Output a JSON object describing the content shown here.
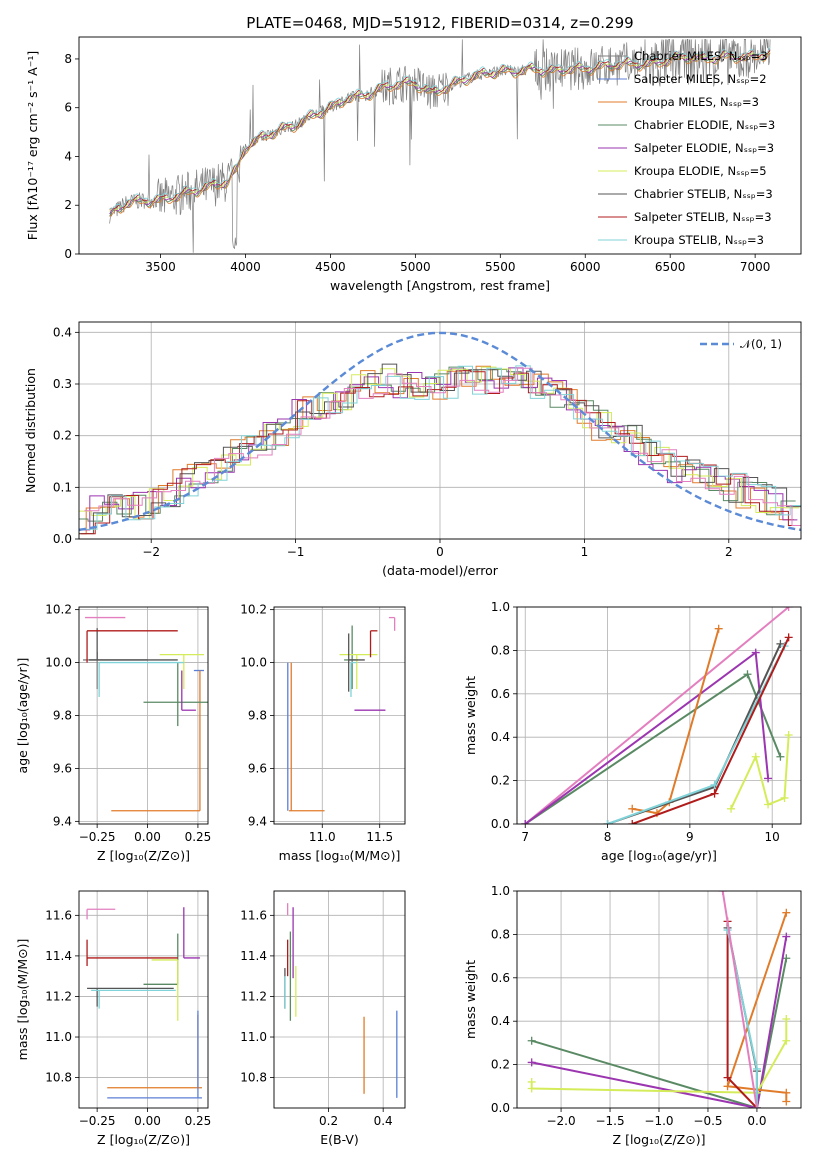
{
  "figure": {
    "title": "PLATE=0468, MJD=51912, FIBERID=0314, z=0.299"
  },
  "chart_data": [
    {
      "id": "spectrum",
      "type": "line",
      "xlabel": "wavelength [Angstrom, rest frame]",
      "ylabel": "Flux [fλ10⁻¹⁷ erg cm⁻² s⁻¹ A⁻¹]",
      "xlim": [
        3020,
        7270
      ],
      "ylim": [
        0,
        8.9
      ],
      "xticks": [
        3500,
        4000,
        4500,
        5000,
        5500,
        6000,
        6500,
        7000
      ],
      "yticks": [
        0,
        2,
        4,
        6,
        8
      ],
      "grid": false,
      "legend_position": "top-right",
      "legend": [
        "Chabrier MILES, N_SSP=3",
        "Salpeter MILES, N_SSP=2",
        "Kroupa MILES, N_SSP=3",
        "Chabrier ELODIE, N_SSP=3",
        "Salpeter ELODIE, N_SSP=3",
        "Kroupa ELODIE, N_SSP=5",
        "Chabrier STELIB, N_SSP=3",
        "Salpeter STELIB, N_SSP=3",
        "Kroupa STELIB, N_SSP=3"
      ],
      "continuum": {
        "x": [
          3200,
          3300,
          3400,
          3500,
          3600,
          3700,
          3800,
          3900,
          3950,
          4000,
          4100,
          4200,
          4300,
          4400,
          4500,
          4600,
          4700,
          4800,
          4900,
          5000,
          5100,
          5200,
          5300,
          5400,
          5500,
          5600,
          5700,
          5800,
          5900,
          6000,
          6100,
          6200,
          6300,
          6400,
          6500,
          6600,
          6700,
          6800,
          6900,
          7000,
          7100
        ],
        "y": [
          1.6,
          2.1,
          2.2,
          2.2,
          2.4,
          2.6,
          2.8,
          3.0,
          3.5,
          4.4,
          4.8,
          5.1,
          5.3,
          5.7,
          6.0,
          6.4,
          6.5,
          6.8,
          7.0,
          7.0,
          6.6,
          6.9,
          7.2,
          7.4,
          7.5,
          7.5,
          7.6,
          7.5,
          7.6,
          7.6,
          7.7,
          7.8,
          7.8,
          7.8,
          8.0,
          8.1,
          8.0,
          8.1,
          8.1,
          8.1,
          8.3
        ]
      }
    },
    {
      "id": "residuals",
      "type": "step",
      "xlabel": "(data-model)/error",
      "ylabel": "Normed distribution",
      "xlim": [
        -2.5,
        2.5
      ],
      "ylim": [
        0,
        0.42
      ],
      "xticks": [
        -2,
        -1,
        0,
        1,
        2
      ],
      "yticks": [
        0.0,
        0.1,
        0.2,
        0.3,
        0.4
      ],
      "grid": true,
      "legend_position": "top-right",
      "reference_curve": {
        "label": "𝒩(0, 1)",
        "style": "dashed",
        "mean": 0,
        "sigma": 1
      },
      "bins": [
        -2.5,
        -2.4,
        -2.3,
        -2.2,
        -2.1,
        -2.0,
        -1.9,
        -1.8,
        -1.7,
        -1.6,
        -1.5,
        -1.4,
        -1.3,
        -1.2,
        -1.1,
        -1.0,
        -0.9,
        -0.8,
        -0.7,
        -0.6,
        -0.5,
        -0.4,
        -0.3,
        -0.2,
        -0.1,
        0.0,
        0.1,
        0.2,
        0.3,
        0.4,
        0.5,
        0.6,
        0.7,
        0.8,
        0.9,
        1.0,
        1.1,
        1.2,
        1.3,
        1.4,
        1.5,
        1.6,
        1.7,
        1.8,
        1.9,
        2.0,
        2.1,
        2.2,
        2.3,
        2.4,
        2.5
      ],
      "envelope": [
        0.035,
        0.06,
        0.07,
        0.065,
        0.065,
        0.07,
        0.08,
        0.11,
        0.12,
        0.13,
        0.15,
        0.17,
        0.18,
        0.2,
        0.21,
        0.24,
        0.26,
        0.27,
        0.28,
        0.3,
        0.3,
        0.31,
        0.3,
        0.3,
        0.31,
        0.3,
        0.31,
        0.3,
        0.31,
        0.32,
        0.31,
        0.3,
        0.29,
        0.28,
        0.26,
        0.24,
        0.22,
        0.2,
        0.19,
        0.17,
        0.15,
        0.13,
        0.13,
        0.12,
        0.11,
        0.1,
        0.09,
        0.08,
        0.07,
        0.05
      ]
    },
    {
      "id": "age_vs_Z",
      "type": "errorbar",
      "xlabel": "Z [log₁₀(Z/Z⊙)]",
      "ylabel": "age  [log₁₀(age/yr)]",
      "xlim": [
        -0.34,
        0.3
      ],
      "ylim": [
        9.39,
        10.21
      ],
      "xticks": [
        -0.25,
        0.0,
        0.25
      ],
      "yticks": [
        9.4,
        9.6,
        9.8,
        10.0,
        10.2
      ],
      "grid": true,
      "points": [
        {
          "x": -0.25,
          "y": 10.01,
          "xerr": [
            0.07,
            0.25
          ],
          "yerr": [
            0.11,
            0.03
          ],
          "model": "Chabrier MILES"
        },
        {
          "x": 0.25,
          "y": 9.97,
          "xerr": [
            0.02,
            0.03
          ],
          "yerr": [
            0.0,
            0.0
          ],
          "model": "Salpeter MILES"
        },
        {
          "x": 0.26,
          "y": 9.44,
          "xerr": [
            0.44,
            0.0
          ],
          "yerr": [
            0.0,
            0.53
          ],
          "model": "Kroupa MILES"
        },
        {
          "x": 0.15,
          "y": 9.85,
          "xerr": [
            0.17,
            0.15
          ],
          "yerr": [
            0.09,
            0.15
          ],
          "model": "Chabrier ELODIE"
        },
        {
          "x": 0.17,
          "y": 9.82,
          "xerr": [
            0.0,
            0.07
          ],
          "yerr": [
            0.0,
            0.15
          ],
          "model": "Salpeter ELODIE"
        },
        {
          "x": 0.18,
          "y": 10.03,
          "xerr": [
            0.12,
            0.1
          ],
          "yerr": [
            0.13,
            0.0
          ],
          "model": "Kroupa ELODIE"
        },
        {
          "x": -0.25,
          "y": 10.01,
          "xerr": [
            0.04,
            0.4
          ],
          "yerr": [
            0.0,
            0.12
          ],
          "model": "Chabrier STELIB"
        },
        {
          "x": -0.3,
          "y": 10.12,
          "xerr": [
            0.0,
            0.45
          ],
          "yerr": [
            0.12,
            0.0
          ],
          "model": "Salpeter STELIB"
        },
        {
          "x": -0.24,
          "y": 10.0,
          "xerr": [
            0.0,
            0.42
          ],
          "yerr": [
            0.13,
            0.0
          ],
          "model": "Kroupa STELIB"
        },
        {
          "x": -0.25,
          "y": 10.17,
          "xerr": [
            0.06,
            0.14
          ],
          "yerr": [
            0.0,
            0.0
          ],
          "model": "pink"
        }
      ]
    },
    {
      "id": "age_vs_mass",
      "type": "errorbar",
      "xlabel": "mass [log₁₀(M/M⊙)]",
      "ylabel": "",
      "xlim": [
        10.58,
        11.72
      ],
      "ylim": [
        9.39,
        10.21
      ],
      "xticks": [
        11.0,
        11.5
      ],
      "yticks": [
        9.4,
        9.6,
        9.8,
        10.0,
        10.2
      ],
      "grid": true,
      "points": [
        {
          "x": 10.73,
          "y": 9.44,
          "xerr": [
            0.02,
            0.29
          ],
          "yerr": [
            0.0,
            0.56
          ],
          "model": "Kroupa MILES"
        },
        {
          "x": 10.7,
          "y": 9.97,
          "xerr": [
            0.0,
            0.0
          ],
          "yerr": [
            0.53,
            0.03
          ],
          "model": "Salpeter MILES"
        },
        {
          "x": 11.26,
          "y": 10.01,
          "xerr": [
            0.07,
            0.05
          ],
          "yerr": [
            0.11,
            0.13
          ],
          "model": "Chabrier ELODIE"
        },
        {
          "x": 11.4,
          "y": 9.82,
          "xerr": [
            0.12,
            0.15
          ],
          "yerr": [
            0.0,
            0.0
          ],
          "model": "Salpeter ELODIE"
        },
        {
          "x": 11.3,
          "y": 10.03,
          "xerr": [
            0.15,
            0.18
          ],
          "yerr": [
            0.13,
            0.0
          ],
          "model": "Kroupa ELODIE"
        },
        {
          "x": 11.23,
          "y": 10.01,
          "xerr": [
            0.0,
            0.14
          ],
          "yerr": [
            0.12,
            0.1
          ],
          "model": "Chabrier STELIB"
        },
        {
          "x": 11.42,
          "y": 10.12,
          "xerr": [
            0.0,
            0.06
          ],
          "yerr": [
            0.1,
            0.0
          ],
          "model": "Salpeter STELIB"
        },
        {
          "x": 11.25,
          "y": 10.0,
          "xerr": [
            0.0,
            0.05
          ],
          "yerr": [
            0.13,
            0.0
          ],
          "model": "Kroupa STELIB"
        },
        {
          "x": 11.63,
          "y": 10.17,
          "xerr": [
            0.05,
            0.0
          ],
          "yerr": [
            0.05,
            0.0
          ],
          "model": "pink"
        }
      ]
    },
    {
      "id": "mass_weight_vs_age",
      "type": "line",
      "xlabel": "age  [log₁₀(age/yr)]",
      "ylabel": "mass weight",
      "xlim": [
        6.9,
        10.35
      ],
      "ylim": [
        0,
        1.0
      ],
      "xticks": [
        7,
        8,
        9,
        10
      ],
      "yticks": [
        0.0,
        0.2,
        0.4,
        0.6,
        0.8,
        1.0
      ],
      "grid": true,
      "series": [
        {
          "model": "pink",
          "x": [
            7.0,
            10.2
          ],
          "y": [
            0.0,
            1.0
          ]
        },
        {
          "model": "Chabrier ELODIE",
          "x": [
            7.0,
            9.7,
            10.1
          ],
          "y": [
            0.0,
            0.69,
            0.31
          ]
        },
        {
          "model": "Salpeter ELODIE",
          "x": [
            7.0,
            9.8,
            9.95
          ],
          "y": [
            0.0,
            0.79,
            0.21
          ]
        },
        {
          "model": "Kroupa MILES",
          "x": [
            8.3,
            8.6,
            8.75,
            9.35
          ],
          "y": [
            0.07,
            0.05,
            0.1,
            0.9
          ]
        },
        {
          "model": "Chabrier STELIB",
          "x": [
            8.0,
            9.3,
            10.1
          ],
          "y": [
            0.0,
            0.17,
            0.83
          ]
        },
        {
          "model": "Kroupa STELIB",
          "x": [
            8.0,
            9.3,
            10.15
          ],
          "y": [
            0.0,
            0.18,
            0.82
          ]
        },
        {
          "model": "Salpeter STELIB",
          "x": [
            8.3,
            9.3,
            10.2
          ],
          "y": [
            0.0,
            0.14,
            0.86
          ]
        },
        {
          "model": "Kroupa ELODIE",
          "x": [
            9.5,
            9.8,
            9.95,
            10.15,
            10.2
          ],
          "y": [
            0.07,
            0.31,
            0.09,
            0.12,
            0.41
          ]
        }
      ]
    },
    {
      "id": "mass_vs_Z",
      "type": "errorbar",
      "xlabel": "Z [log₁₀(Z/Z⊙)]",
      "ylabel": "mass [log₁₀(M/M⊙)]",
      "xlim": [
        -0.34,
        0.3
      ],
      "ylim": [
        10.65,
        11.72
      ],
      "xticks": [
        -0.25,
        0.0,
        0.25
      ],
      "yticks": [
        10.8,
        11.0,
        11.2,
        11.4,
        11.6
      ],
      "grid": true,
      "points": [
        {
          "x": 0.25,
          "y": 10.75,
          "xerr": [
            0.45,
            0.02
          ],
          "yerr": [
            0.0,
            0.36
          ],
          "model": "Kroupa MILES"
        },
        {
          "x": 0.25,
          "y": 10.7,
          "xerr": [
            0.45,
            0.02
          ],
          "yerr": [
            0.0,
            0.43
          ],
          "model": "Salpeter MILES"
        },
        {
          "x": 0.15,
          "y": 11.26,
          "xerr": [
            0.17,
            0.0
          ],
          "yerr": [
            0.0,
            0.25
          ],
          "model": "Chabrier ELODIE"
        },
        {
          "x": 0.18,
          "y": 11.39,
          "xerr": [
            0.0,
            0.08
          ],
          "yerr": [
            0.0,
            0.25
          ],
          "model": "Salpeter ELODIE"
        },
        {
          "x": 0.15,
          "y": 11.38,
          "xerr": [
            0.13,
            0.0
          ],
          "yerr": [
            0.3,
            0.0
          ],
          "model": "Kroupa ELODIE"
        },
        {
          "x": -0.25,
          "y": 11.24,
          "xerr": [
            0.05,
            0.38
          ],
          "yerr": [
            0.09,
            0.0
          ],
          "model": "Chabrier STELIB"
        },
        {
          "x": -0.3,
          "y": 11.39,
          "xerr": [
            0.0,
            0.45
          ],
          "yerr": [
            0.04,
            0.09
          ],
          "model": "Salpeter STELIB"
        },
        {
          "x": -0.24,
          "y": 11.23,
          "xerr": [
            0.04,
            0.38
          ],
          "yerr": [
            0.09,
            0.0
          ],
          "model": "Kroupa STELIB"
        },
        {
          "x": -0.3,
          "y": 11.63,
          "xerr": [
            0.0,
            0.14
          ],
          "yerr": [
            0.05,
            0.0
          ],
          "model": "pink"
        }
      ]
    },
    {
      "id": "mass_vs_ebv",
      "type": "errorbar",
      "xlabel": "E(B-V)",
      "ylabel": "",
      "xlim": [
        0.0,
        0.48
      ],
      "ylim": [
        10.65,
        11.72
      ],
      "xticks": [
        0.2,
        0.4
      ],
      "yticks": [
        10.8,
        11.0,
        11.2,
        11.4,
        11.6
      ],
      "grid": true,
      "points": [
        {
          "x": 0.33,
          "y": 10.9,
          "xerr": [
            0.0,
            0.0
          ],
          "yerr": [
            0.18,
            0.2
          ],
          "model": "Kroupa MILES"
        },
        {
          "x": 0.45,
          "y": 10.9,
          "xerr": [
            0.0,
            0.0
          ],
          "yerr": [
            0.2,
            0.23
          ],
          "model": "Salpeter MILES"
        },
        {
          "x": 0.06,
          "y": 11.28,
          "xerr": [
            0.0,
            0.0
          ],
          "yerr": [
            0.2,
            0.24
          ],
          "model": "Chabrier ELODIE"
        },
        {
          "x": 0.07,
          "y": 11.37,
          "xerr": [
            0.0,
            0.0
          ],
          "yerr": [
            0.08,
            0.27
          ],
          "model": "Salpeter ELODIE"
        },
        {
          "x": 0.08,
          "y": 11.3,
          "xerr": [
            0.0,
            0.0
          ],
          "yerr": [
            0.2,
            0.05
          ],
          "model": "Kroupa ELODIE"
        },
        {
          "x": 0.04,
          "y": 11.24,
          "xerr": [
            0.0,
            0.0
          ],
          "yerr": [
            0.1,
            0.1
          ],
          "model": "Chabrier STELIB"
        },
        {
          "x": 0.05,
          "y": 11.39,
          "xerr": [
            0.0,
            0.0
          ],
          "yerr": [
            0.09,
            0.09
          ],
          "model": "Salpeter STELIB"
        },
        {
          "x": 0.04,
          "y": 11.3,
          "xerr": [
            0.0,
            0.0
          ],
          "yerr": [
            0.16,
            0.0
          ],
          "model": "Kroupa STELIB"
        },
        {
          "x": 0.05,
          "y": 11.6,
          "xerr": [
            0.0,
            0.0
          ],
          "yerr": [
            0.0,
            0.06
          ],
          "model": "pink"
        }
      ]
    },
    {
      "id": "mass_weight_vs_Z",
      "type": "line",
      "xlabel": "Z [log₁₀(Z/Z⊙)]",
      "ylabel": "mass weight",
      "xlim": [
        -2.45,
        0.45
      ],
      "ylim": [
        0,
        1.0
      ],
      "xticks": [
        -2.0,
        -1.5,
        -1.0,
        -0.5,
        0.0
      ],
      "yticks": [
        0.0,
        0.2,
        0.4,
        0.6,
        0.8,
        1.0
      ],
      "grid": true,
      "series": [
        {
          "model": "Chabrier ELODIE",
          "x": [
            -2.3,
            0.0,
            0.3
          ],
          "y": [
            0.31,
            0.0,
            0.69
          ]
        },
        {
          "model": "Salpeter ELODIE",
          "x": [
            -2.3,
            0.0,
            0.3
          ],
          "y": [
            0.21,
            0.0,
            0.79
          ]
        },
        {
          "model": "Kroupa ELODIE",
          "x": [
            -2.3,
            -2.3,
            0.0,
            0.3,
            0.3
          ],
          "y": [
            0.12,
            0.09,
            0.07,
            0.31,
            0.41
          ]
        },
        {
          "model": "Kroupa MILES",
          "x": [
            0.3,
            0.3,
            -0.3,
            0.3
          ],
          "y": [
            0.03,
            0.07,
            0.1,
            0.9
          ]
        },
        {
          "model": "Salpeter STELIB",
          "x": [
            -0.3,
            -0.3,
            0.0
          ],
          "y": [
            0.86,
            0.14,
            0.0
          ]
        },
        {
          "model": "Chabrier STELIB",
          "x": [
            -0.3,
            0.0,
            0.0
          ],
          "y": [
            0.83,
            0.17,
            0.0
          ]
        },
        {
          "model": "Kroupa STELIB",
          "x": [
            -0.3,
            0.0,
            0.0
          ],
          "y": [
            0.82,
            0.18,
            0.0
          ]
        },
        {
          "model": "pink",
          "x": [
            -0.35,
            0.0
          ],
          "y": [
            1.0,
            0.0
          ]
        }
      ]
    }
  ],
  "colors": {
    "Chabrier MILES": "#808080",
    "Salpeter MILES": "#5b7fd6",
    "Kroupa MILES": "#e07b2a",
    "Chabrier ELODIE": "#5a8a64",
    "Salpeter ELODIE": "#9b35b0",
    "Kroupa ELODIE": "#d5ec5a",
    "Chabrier STELIB": "#555555",
    "Salpeter STELIB": "#b01c1c",
    "Kroupa STELIB": "#80d3d9",
    "pink": "#e37fbf",
    "normal": "#5b8ad6",
    "data": "#808080"
  }
}
